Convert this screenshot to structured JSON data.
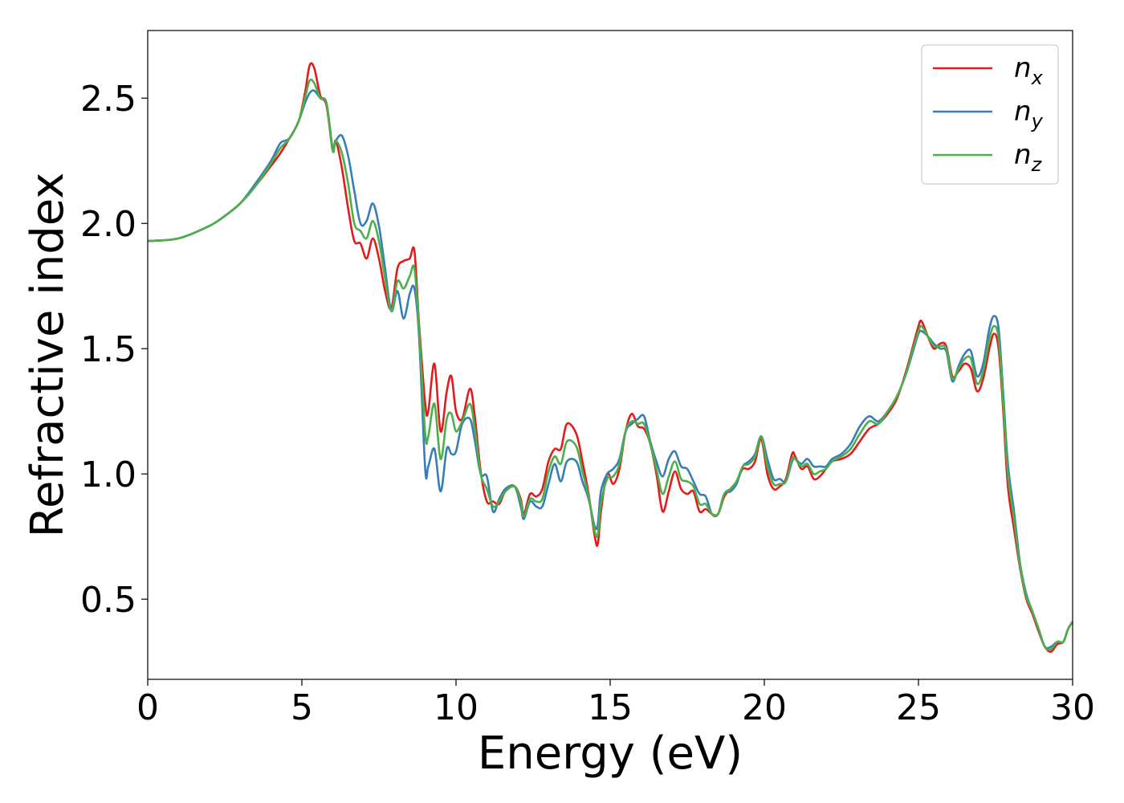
{
  "chart_data": {
    "type": "line",
    "xlabel": "Energy (eV)",
    "ylabel": "Refractive index",
    "xlim": [
      0,
      30
    ],
    "ylim": [
      0.18,
      2.77
    ],
    "xticks": [
      0,
      5,
      10,
      15,
      20,
      25,
      30
    ],
    "xtick_labels": [
      "0",
      "5",
      "10",
      "15",
      "20",
      "25",
      "30"
    ],
    "yticks": [
      0.5,
      1.0,
      1.5,
      2.0,
      2.5
    ],
    "ytick_labels": [
      "0.5",
      "1.0",
      "1.5",
      "2.0",
      "2.5"
    ],
    "grid": false,
    "legend_position": "top-right",
    "series": [
      {
        "name": "n_x",
        "label_base": "n",
        "label_sub": "x",
        "color": "#e41a1c",
        "x": [
          0,
          1,
          2,
          2.5,
          3,
          3.5,
          4,
          4.3,
          4.6,
          4.9,
          5.1,
          5.25,
          5.4,
          5.6,
          5.8,
          6.0,
          6.1,
          6.3,
          6.5,
          6.7,
          6.9,
          7.1,
          7.3,
          7.5,
          7.7,
          7.9,
          8.1,
          8.3,
          8.5,
          8.65,
          8.8,
          9.0,
          9.1,
          9.3,
          9.5,
          9.7,
          9.85,
          10.0,
          10.2,
          10.45,
          10.6,
          10.8,
          11.0,
          11.2,
          11.4,
          11.6,
          11.9,
          12.1,
          12.2,
          12.4,
          12.6,
          12.8,
          13.0,
          13.2,
          13.4,
          13.6,
          13.9,
          14.1,
          14.3,
          14.5,
          14.6,
          14.7,
          14.9,
          15.1,
          15.3,
          15.5,
          15.7,
          15.9,
          16.1,
          16.3,
          16.5,
          16.7,
          16.9,
          17.1,
          17.3,
          17.5,
          17.7,
          17.9,
          18.1,
          18.3,
          18.5,
          18.7,
          18.9,
          19.1,
          19.3,
          19.5,
          19.7,
          19.9,
          20.1,
          20.3,
          20.5,
          20.7,
          20.9,
          21.0,
          21.2,
          21.4,
          21.6,
          21.8,
          22.0,
          22.2,
          22.5,
          22.8,
          23.1,
          23.4,
          23.7,
          24.0,
          24.3,
          24.6,
          24.8,
          25.0,
          25.1,
          25.3,
          25.5,
          25.7,
          25.9,
          26.1,
          26.3,
          26.5,
          26.7,
          26.9,
          27.1,
          27.3,
          27.45,
          27.6,
          27.75,
          27.9,
          28.1,
          28.3,
          28.5,
          28.7,
          28.9,
          29.1,
          29.3,
          29.5,
          29.7,
          29.85,
          30.0
        ],
        "y": [
          1.93,
          1.94,
          1.99,
          2.03,
          2.08,
          2.15,
          2.23,
          2.28,
          2.34,
          2.41,
          2.52,
          2.63,
          2.62,
          2.51,
          2.47,
          2.29,
          2.33,
          2.22,
          2.06,
          1.93,
          1.92,
          1.86,
          1.94,
          1.86,
          1.73,
          1.66,
          1.82,
          1.85,
          1.86,
          1.89,
          1.6,
          1.28,
          1.25,
          1.44,
          1.17,
          1.33,
          1.39,
          1.25,
          1.22,
          1.34,
          1.24,
          1.01,
          0.89,
          0.89,
          0.88,
          0.93,
          0.95,
          0.9,
          0.84,
          0.92,
          0.91,
          0.94,
          1.05,
          1.1,
          1.1,
          1.2,
          1.16,
          1.05,
          0.92,
          0.75,
          0.72,
          0.85,
          1.0,
          0.96,
          1.02,
          1.17,
          1.24,
          1.19,
          1.18,
          1.12,
          1.0,
          0.85,
          0.93,
          1.01,
          0.94,
          0.92,
          0.93,
          0.85,
          0.86,
          0.84,
          0.84,
          0.91,
          0.94,
          0.97,
          1.02,
          1.02,
          1.05,
          1.14,
          1.0,
          0.94,
          0.95,
          0.98,
          1.08,
          1.07,
          1.02,
          1.03,
          0.98,
          0.99,
          1.02,
          1.05,
          1.06,
          1.08,
          1.13,
          1.18,
          1.2,
          1.24,
          1.3,
          1.41,
          1.5,
          1.59,
          1.61,
          1.55,
          1.5,
          1.52,
          1.51,
          1.39,
          1.41,
          1.44,
          1.42,
          1.33,
          1.38,
          1.5,
          1.56,
          1.5,
          1.25,
          0.95,
          0.78,
          0.62,
          0.5,
          0.44,
          0.37,
          0.31,
          0.29,
          0.32,
          0.33,
          0.38,
          0.41
        ]
      },
      {
        "name": "n_y",
        "label_base": "n",
        "label_sub": "y",
        "color": "#377eb8",
        "x": [
          0,
          1,
          2,
          2.5,
          3,
          3.5,
          4,
          4.3,
          4.6,
          4.9,
          5.1,
          5.25,
          5.4,
          5.6,
          5.8,
          6.0,
          6.1,
          6.3,
          6.5,
          6.7,
          6.9,
          7.1,
          7.3,
          7.5,
          7.7,
          7.9,
          8.1,
          8.3,
          8.5,
          8.65,
          8.8,
          9.0,
          9.1,
          9.3,
          9.5,
          9.7,
          9.85,
          10.0,
          10.2,
          10.45,
          10.6,
          10.8,
          11.0,
          11.2,
          11.4,
          11.6,
          11.9,
          12.1,
          12.2,
          12.4,
          12.6,
          12.8,
          13.0,
          13.2,
          13.4,
          13.6,
          13.9,
          14.1,
          14.3,
          14.5,
          14.6,
          14.7,
          14.9,
          15.1,
          15.3,
          15.5,
          15.7,
          15.9,
          16.1,
          16.3,
          16.5,
          16.7,
          16.9,
          17.1,
          17.3,
          17.5,
          17.7,
          17.9,
          18.1,
          18.3,
          18.5,
          18.7,
          18.9,
          19.1,
          19.3,
          19.5,
          19.7,
          19.9,
          20.1,
          20.3,
          20.5,
          20.7,
          20.9,
          21.0,
          21.2,
          21.4,
          21.6,
          21.8,
          22.0,
          22.2,
          22.5,
          22.8,
          23.1,
          23.4,
          23.7,
          24.0,
          24.3,
          24.6,
          24.8,
          25.0,
          25.1,
          25.3,
          25.5,
          25.7,
          25.9,
          26.1,
          26.3,
          26.5,
          26.7,
          26.9,
          27.1,
          27.3,
          27.45,
          27.6,
          27.75,
          27.9,
          28.1,
          28.3,
          28.5,
          28.7,
          28.9,
          29.1,
          29.3,
          29.5,
          29.7,
          29.85,
          30.0
        ],
        "y": [
          1.93,
          1.94,
          1.99,
          2.03,
          2.08,
          2.16,
          2.25,
          2.32,
          2.34,
          2.41,
          2.48,
          2.52,
          2.53,
          2.5,
          2.48,
          2.3,
          2.33,
          2.35,
          2.27,
          2.13,
          2.0,
          2.01,
          2.08,
          1.99,
          1.82,
          1.65,
          1.73,
          1.62,
          1.72,
          1.74,
          1.55,
          1.02,
          1.03,
          1.1,
          0.93,
          1.1,
          1.08,
          1.09,
          1.2,
          1.22,
          1.14,
          1.0,
          0.99,
          0.85,
          0.9,
          0.94,
          0.95,
          0.87,
          0.82,
          0.89,
          0.87,
          0.87,
          0.96,
          1.04,
          0.97,
          1.05,
          1.05,
          0.97,
          0.9,
          0.79,
          0.8,
          0.93,
          1.0,
          1.02,
          1.06,
          1.17,
          1.2,
          1.22,
          1.23,
          1.13,
          1.05,
          0.99,
          1.06,
          1.09,
          1.03,
          1.02,
          0.97,
          0.92,
          0.91,
          0.84,
          0.84,
          0.92,
          0.93,
          0.96,
          1.03,
          1.05,
          1.08,
          1.15,
          1.06,
          0.98,
          0.98,
          0.97,
          1.05,
          1.06,
          1.04,
          1.06,
          1.03,
          1.03,
          1.03,
          1.06,
          1.08,
          1.12,
          1.19,
          1.23,
          1.21,
          1.25,
          1.31,
          1.4,
          1.48,
          1.56,
          1.57,
          1.55,
          1.52,
          1.5,
          1.49,
          1.37,
          1.43,
          1.48,
          1.49,
          1.39,
          1.44,
          1.58,
          1.63,
          1.58,
          1.32,
          1.04,
          0.85,
          0.64,
          0.52,
          0.45,
          0.38,
          0.31,
          0.31,
          0.33,
          0.33,
          0.38,
          0.41
        ]
      },
      {
        "name": "n_z",
        "label_base": "n",
        "label_sub": "z",
        "color": "#4daf4a",
        "x": [
          0,
          1,
          2,
          2.5,
          3,
          3.5,
          4,
          4.3,
          4.6,
          4.9,
          5.1,
          5.25,
          5.4,
          5.6,
          5.8,
          6.0,
          6.1,
          6.3,
          6.5,
          6.7,
          6.9,
          7.1,
          7.3,
          7.5,
          7.7,
          7.9,
          8.1,
          8.3,
          8.5,
          8.65,
          8.8,
          9.0,
          9.1,
          9.3,
          9.5,
          9.7,
          9.85,
          10.0,
          10.2,
          10.45,
          10.6,
          10.8,
          11.0,
          11.2,
          11.4,
          11.6,
          11.9,
          12.1,
          12.2,
          12.4,
          12.6,
          12.8,
          13.0,
          13.2,
          13.4,
          13.6,
          13.9,
          14.1,
          14.3,
          14.5,
          14.6,
          14.7,
          14.9,
          15.1,
          15.3,
          15.5,
          15.7,
          15.9,
          16.1,
          16.3,
          16.5,
          16.7,
          16.9,
          17.1,
          17.3,
          17.5,
          17.7,
          17.9,
          18.1,
          18.3,
          18.5,
          18.7,
          18.9,
          19.1,
          19.3,
          19.5,
          19.7,
          19.9,
          20.1,
          20.3,
          20.5,
          20.7,
          20.9,
          21.0,
          21.2,
          21.4,
          21.6,
          21.8,
          22.0,
          22.2,
          22.5,
          22.8,
          23.1,
          23.4,
          23.7,
          24.0,
          24.3,
          24.6,
          24.8,
          25.0,
          25.1,
          25.3,
          25.5,
          25.7,
          25.9,
          26.1,
          26.3,
          26.5,
          26.7,
          26.9,
          27.1,
          27.3,
          27.45,
          27.6,
          27.75,
          27.9,
          28.1,
          28.3,
          28.5,
          28.7,
          28.9,
          29.1,
          29.3,
          29.5,
          29.7,
          29.85,
          30.0
        ],
        "y": [
          1.93,
          1.94,
          1.99,
          2.03,
          2.08,
          2.15,
          2.24,
          2.3,
          2.34,
          2.41,
          2.5,
          2.57,
          2.56,
          2.5,
          2.48,
          2.29,
          2.33,
          2.28,
          2.16,
          2.0,
          1.97,
          1.94,
          2.01,
          1.93,
          1.78,
          1.65,
          1.77,
          1.74,
          1.79,
          1.82,
          1.58,
          1.16,
          1.15,
          1.28,
          1.06,
          1.22,
          1.24,
          1.17,
          1.21,
          1.28,
          1.19,
          1.0,
          0.94,
          0.87,
          0.89,
          0.93,
          0.95,
          0.89,
          0.83,
          0.9,
          0.89,
          0.9,
          1.01,
          1.07,
          1.04,
          1.13,
          1.11,
          1.01,
          0.91,
          0.77,
          0.76,
          0.88,
          0.98,
          0.99,
          1.04,
          1.17,
          1.21,
          1.2,
          1.2,
          1.12,
          1.02,
          0.92,
          0.99,
          1.05,
          0.98,
          0.97,
          0.95,
          0.88,
          0.88,
          0.84,
          0.84,
          0.92,
          0.94,
          0.97,
          1.03,
          1.04,
          1.07,
          1.15,
          1.03,
          0.96,
          0.96,
          0.97,
          1.06,
          1.06,
          1.03,
          1.04,
          1.0,
          1.01,
          1.02,
          1.05,
          1.07,
          1.1,
          1.16,
          1.21,
          1.2,
          1.25,
          1.31,
          1.4,
          1.49,
          1.57,
          1.59,
          1.55,
          1.51,
          1.51,
          1.5,
          1.38,
          1.42,
          1.46,
          1.46,
          1.36,
          1.41,
          1.54,
          1.59,
          1.54,
          1.28,
          1.0,
          0.82,
          0.63,
          0.51,
          0.45,
          0.38,
          0.31,
          0.3,
          0.33,
          0.33,
          0.38,
          0.41
        ]
      }
    ]
  }
}
